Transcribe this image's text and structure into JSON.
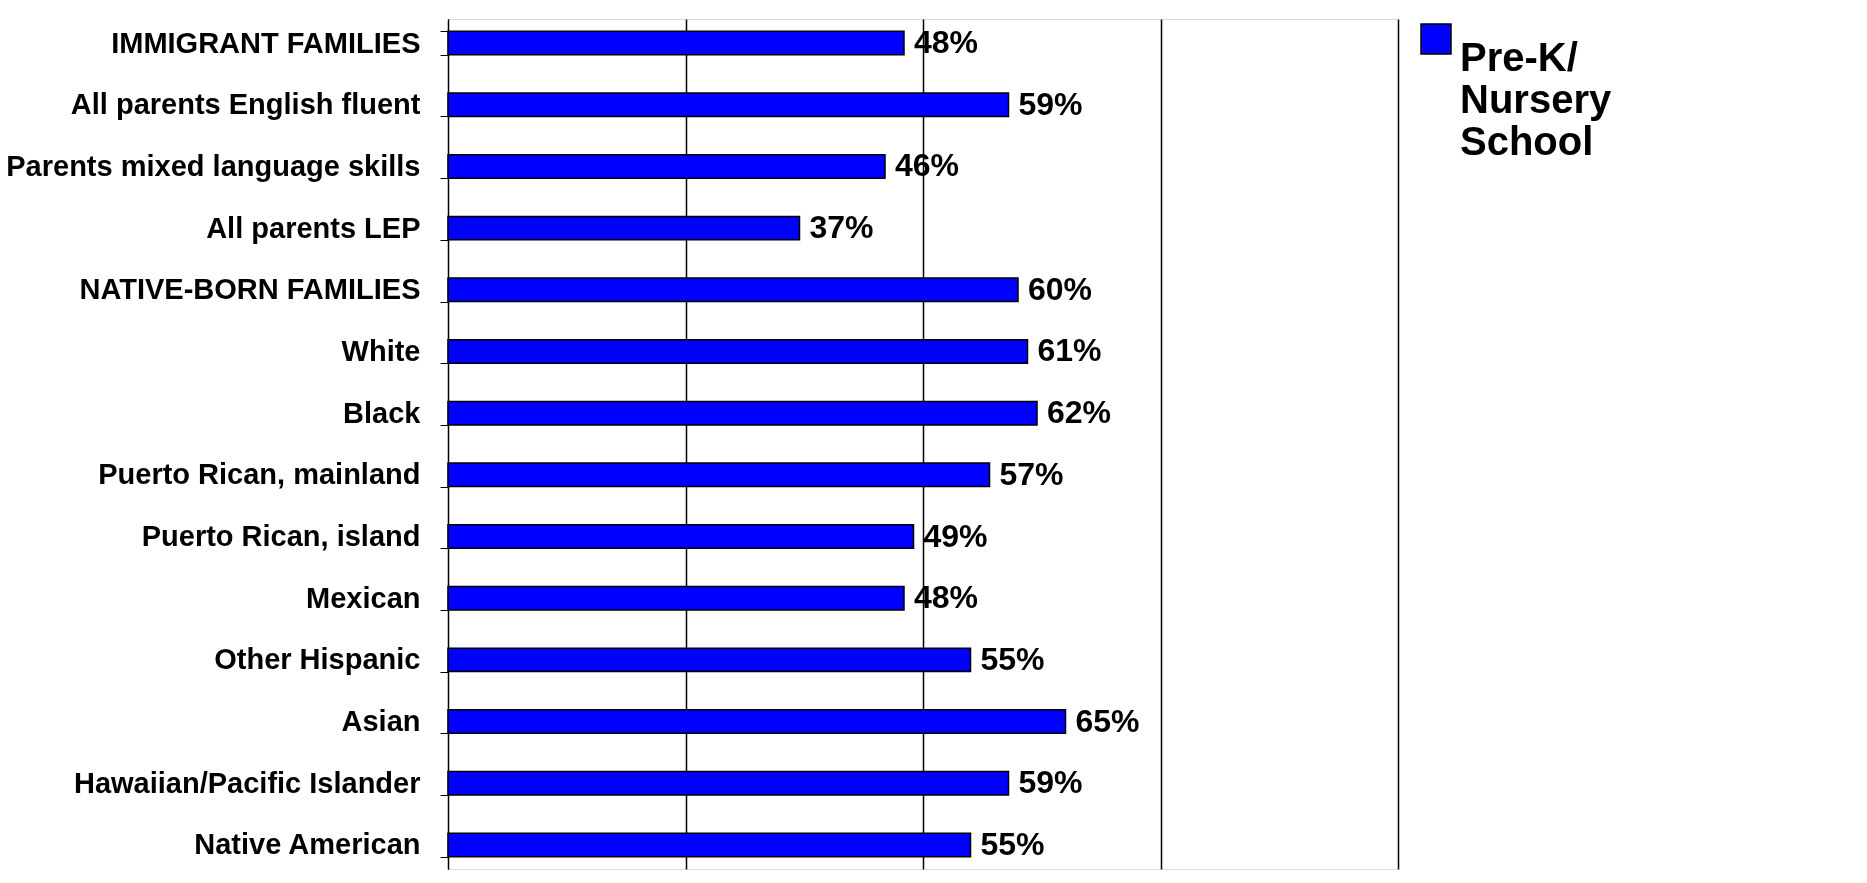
{
  "chart_data": {
    "type": "bar",
    "orientation": "horizontal",
    "categories": [
      "IMMIGRANT FAMILIES",
      "All parents English fluent",
      "Parents mixed language skills",
      "All parents LEP",
      "NATIVE-BORN FAMILIES",
      "White",
      "Black",
      "Puerto Rican, mainland",
      "Puerto Rican, island",
      "Mexican",
      "Other Hispanic",
      "Asian",
      "Hawaiian/Pacific Islander",
      "Native American"
    ],
    "series": [
      {
        "name": "Pre-K/ Nursery School",
        "color": "#0000ff",
        "values": [
          48,
          59,
          46,
          37,
          60,
          61,
          62,
          57,
          49,
          48,
          55,
          65,
          59,
          55
        ],
        "value_labels": [
          "48%",
          "59%",
          "46%",
          "37%",
          "60%",
          "61%",
          "62%",
          "57%",
          "49%",
          "48%",
          "55%",
          "65%",
          "59%",
          "55%"
        ]
      }
    ],
    "xlim": [
      0,
      100
    ],
    "xticks": [
      {
        "value": 0,
        "label": null
      },
      {
        "value": 25,
        "label": null
      },
      {
        "value": 50,
        "label": null
      },
      {
        "value": 75,
        "label": null
      },
      {
        "value": 100,
        "label": null
      }
    ],
    "tick_labels": "y",
    "grid": "x",
    "legend": "right"
  }
}
